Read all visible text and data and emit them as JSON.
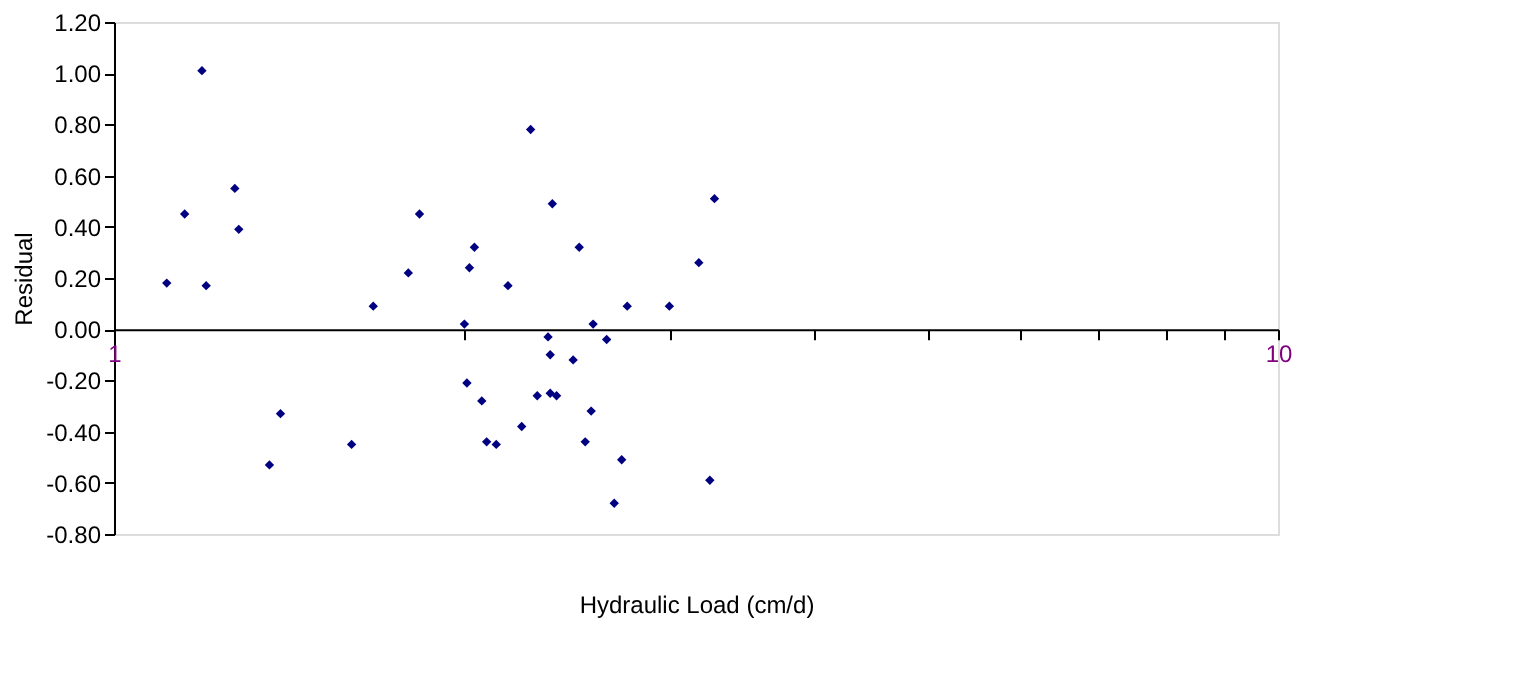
{
  "chart_data": {
    "type": "scatter",
    "xlabel": "Hydraulic Load (cm/d)",
    "ylabel": "Residual",
    "x": [
      1.11,
      1.15,
      1.19,
      1.2,
      1.27,
      1.28,
      1.67,
      1.79,
      1.83,
      1.39,
      1.36,
      1.6,
      2.28,
      2.38,
      2.04,
      2.02,
      2.18,
      2.51,
      3.28,
      3.18,
      2.76,
      3.0,
      2.0,
      2.58,
      2.36,
      2.65,
      2.37,
      2.48,
      2.01,
      2.07,
      2.31,
      2.37,
      2.4,
      2.57,
      2.24,
      2.09,
      2.13,
      2.54,
      2.73,
      2.69,
      3.25
    ],
    "series": [
      {
        "color": "#000080",
        "values": [
          0.18,
          0.45,
          1.01,
          0.17,
          0.55,
          0.39,
          0.09,
          0.22,
          0.45,
          -0.33,
          -0.53,
          -0.45,
          0.78,
          0.49,
          0.32,
          0.24,
          0.17,
          0.32,
          0.51,
          0.26,
          0.09,
          0.09,
          0.02,
          0.02,
          -0.03,
          -0.04,
          -0.1,
          -0.12,
          -0.21,
          -0.28,
          -0.26,
          -0.25,
          -0.26,
          -0.32,
          -0.38,
          -0.44,
          -0.45,
          -0.44,
          -0.51,
          -0.68,
          -0.59
        ]
      }
    ],
    "log": "x",
    "xlim": [
      1,
      10
    ],
    "xticks": [
      1,
      {
        "value": 2,
        "label": null
      },
      {
        "value": 3,
        "label": null
      },
      {
        "value": 4,
        "label": null
      },
      {
        "value": 5,
        "label": null
      },
      {
        "value": 6,
        "label": null
      },
      {
        "value": 7,
        "label": null
      },
      {
        "value": 8,
        "label": null
      },
      {
        "value": 9,
        "label": null
      },
      10
    ],
    "ylim": [
      -0.8,
      1.2
    ],
    "yticks": [
      {
        "value": -0.8,
        "label": "-0.80"
      },
      {
        "value": -0.6,
        "label": "-0.60"
      },
      {
        "value": -0.4,
        "label": "-0.40"
      },
      {
        "value": -0.2,
        "label": "-0.20"
      },
      {
        "value": 0,
        "label": "0.00"
      },
      {
        "value": 0.2,
        "label": "0.20"
      },
      {
        "value": 0.4,
        "label": "0.40"
      },
      {
        "value": 0.6,
        "label": "0.60"
      },
      {
        "value": 0.8,
        "label": "0.80"
      },
      {
        "value": 1.0,
        "label": "1.00"
      },
      {
        "value": 1.2,
        "label": "1.20"
      }
    ],
    "grid": false,
    "legend": false,
    "marker": "diamond"
  }
}
